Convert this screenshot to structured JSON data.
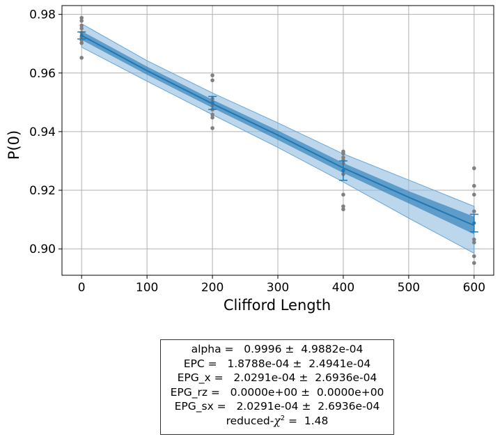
{
  "chart_data": {
    "type": "scatter",
    "xlabel": "Clifford Length",
    "ylabel": "P(0)",
    "xlim": [
      -30,
      630
    ],
    "ylim": [
      0.891,
      0.983
    ],
    "xticks": [
      0,
      100,
      200,
      300,
      400,
      500,
      600
    ],
    "yticks": [
      0.9,
      0.92,
      0.94,
      0.96,
      0.98
    ],
    "xtick_labels": [
      "0",
      "100",
      "200",
      "300",
      "400",
      "500",
      "600"
    ],
    "ytick_labels": [
      "0.90",
      "0.92",
      "0.94",
      "0.96",
      "0.98"
    ],
    "grid": true,
    "colors": {
      "fit": "#1f77b4",
      "band": "#8fbde0",
      "points": "#808080"
    },
    "raw_points": [
      {
        "x": 0,
        "y": 0.9788
      },
      {
        "x": 0,
        "y": 0.9778
      },
      {
        "x": 0,
        "y": 0.9762
      },
      {
        "x": 0,
        "y": 0.9752
      },
      {
        "x": 0,
        "y": 0.9738
      },
      {
        "x": 0,
        "y": 0.9722
      },
      {
        "x": 0,
        "y": 0.9712
      },
      {
        "x": 0,
        "y": 0.9702
      },
      {
        "x": 0,
        "y": 0.9652
      },
      {
        "x": 200,
        "y": 0.9592
      },
      {
        "x": 200,
        "y": 0.9575
      },
      {
        "x": 200,
        "y": 0.9512
      },
      {
        "x": 200,
        "y": 0.9502
      },
      {
        "x": 200,
        "y": 0.9488
      },
      {
        "x": 200,
        "y": 0.9475
      },
      {
        "x": 200,
        "y": 0.9458
      },
      {
        "x": 200,
        "y": 0.9448
      },
      {
        "x": 200,
        "y": 0.9412
      },
      {
        "x": 400,
        "y": 0.9332
      },
      {
        "x": 400,
        "y": 0.9325
      },
      {
        "x": 400,
        "y": 0.9312
      },
      {
        "x": 400,
        "y": 0.9302
      },
      {
        "x": 400,
        "y": 0.9292
      },
      {
        "x": 400,
        "y": 0.9255
      },
      {
        "x": 400,
        "y": 0.9185
      },
      {
        "x": 400,
        "y": 0.9145
      },
      {
        "x": 400,
        "y": 0.9135
      },
      {
        "x": 600,
        "y": 0.9275
      },
      {
        "x": 600,
        "y": 0.9215
      },
      {
        "x": 600,
        "y": 0.9185
      },
      {
        "x": 600,
        "y": 0.9128
      },
      {
        "x": 600,
        "y": 0.9032
      },
      {
        "x": 600,
        "y": 0.9022
      },
      {
        "x": 600,
        "y": 0.8975
      },
      {
        "x": 600,
        "y": 0.8952
      }
    ],
    "mean_points": [
      {
        "x": 0,
        "y": 0.9728,
        "err": 0.0012
      },
      {
        "x": 200,
        "y": 0.9498,
        "err": 0.0022
      },
      {
        "x": 400,
        "y": 0.9267,
        "err": 0.0033
      },
      {
        "x": 600,
        "y": 0.9088,
        "err": 0.003
      }
    ],
    "fit_curve": {
      "x": [
        0,
        100,
        200,
        300,
        400,
        500,
        600
      ],
      "y": [
        0.9728,
        0.9608,
        0.9495,
        0.9388,
        0.9276,
        0.9176,
        0.908
      ]
    },
    "band_1sigma": {
      "x": [
        0,
        100,
        200,
        300,
        400,
        500,
        600
      ],
      "lower": [
        0.9713,
        0.9594,
        0.9481,
        0.9372,
        0.9259,
        0.9155,
        0.905
      ],
      "upper": [
        0.9743,
        0.9622,
        0.9509,
        0.9404,
        0.9293,
        0.9197,
        0.911
      ]
    },
    "band_2sigma": {
      "x": [
        0,
        100,
        200,
        300,
        400,
        500,
        600
      ],
      "lower": [
        0.9688,
        0.9572,
        0.9458,
        0.9346,
        0.9228,
        0.9105,
        0.8985
      ],
      "upper": [
        0.9768,
        0.9642,
        0.9532,
        0.943,
        0.9324,
        0.9235,
        0.9145
      ]
    }
  },
  "fit_report": {
    "alpha": "alpha =   0.9996 ±  4.9882e-04",
    "epc": "EPC =   1.8788e-04 ±  2.4941e-04",
    "epg_x": "EPG_x =   2.0291e-04 ±  2.6936e-04",
    "epg_rz": "EPG_rz =   0.0000e+00 ±  0.0000e+00",
    "epg_sx": "EPG_sx =   2.0291e-04 ±  2.6936e-04",
    "chi_prefix": "reduced-",
    "chi_symbol": "χ",
    "chi_power": "2",
    "chi_value": " =  1.48"
  }
}
